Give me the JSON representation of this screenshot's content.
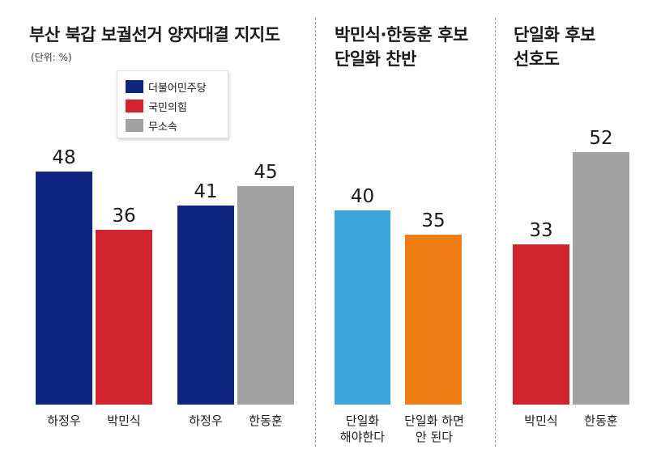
{
  "colors": {
    "democratic": "#0f2580",
    "ppp": "#d1242c",
    "independent": "#a1a1a1",
    "favor": "#3aa6dc",
    "oppose": "#ee7e14"
  },
  "chart_data": [
    {
      "type": "bar",
      "title": "부산 북갑 보궐선거 양자대결 지지도",
      "subtitle": "(단위: %)",
      "legend": [
        {
          "label": "더불어민주당",
          "color": "#0f2580"
        },
        {
          "label": "국민의힘",
          "color": "#d1242c"
        },
        {
          "label": "무소속",
          "color": "#a1a1a1"
        }
      ],
      "legend_position": "top-left",
      "groups": [
        {
          "categories": [
            "하정우",
            "박민식"
          ],
          "values": [
            48,
            36
          ],
          "colors": [
            "#0f2580",
            "#d1242c"
          ]
        },
        {
          "categories": [
            "하정우",
            "한동훈"
          ],
          "values": [
            41,
            45
          ],
          "colors": [
            "#0f2580",
            "#a1a1a1"
          ]
        }
      ],
      "ylim": [
        0,
        60
      ]
    },
    {
      "type": "bar",
      "title": [
        "박민식·한동훈 후보",
        "단일화 찬반"
      ],
      "categories": [
        [
          "단일화",
          "해야한다"
        ],
        [
          "단일화 하면",
          "안 된다"
        ]
      ],
      "values": [
        40,
        35
      ],
      "colors": [
        "#3aa6dc",
        "#ee7e14"
      ],
      "ylim": [
        0,
        60
      ]
    },
    {
      "type": "bar",
      "title": [
        "단일화 후보",
        "선호도"
      ],
      "categories": [
        "박민식",
        "한동훈"
      ],
      "values": [
        33,
        52
      ],
      "colors": [
        "#d1242c",
        "#a1a1a1"
      ],
      "ylim": [
        0,
        60
      ]
    }
  ]
}
